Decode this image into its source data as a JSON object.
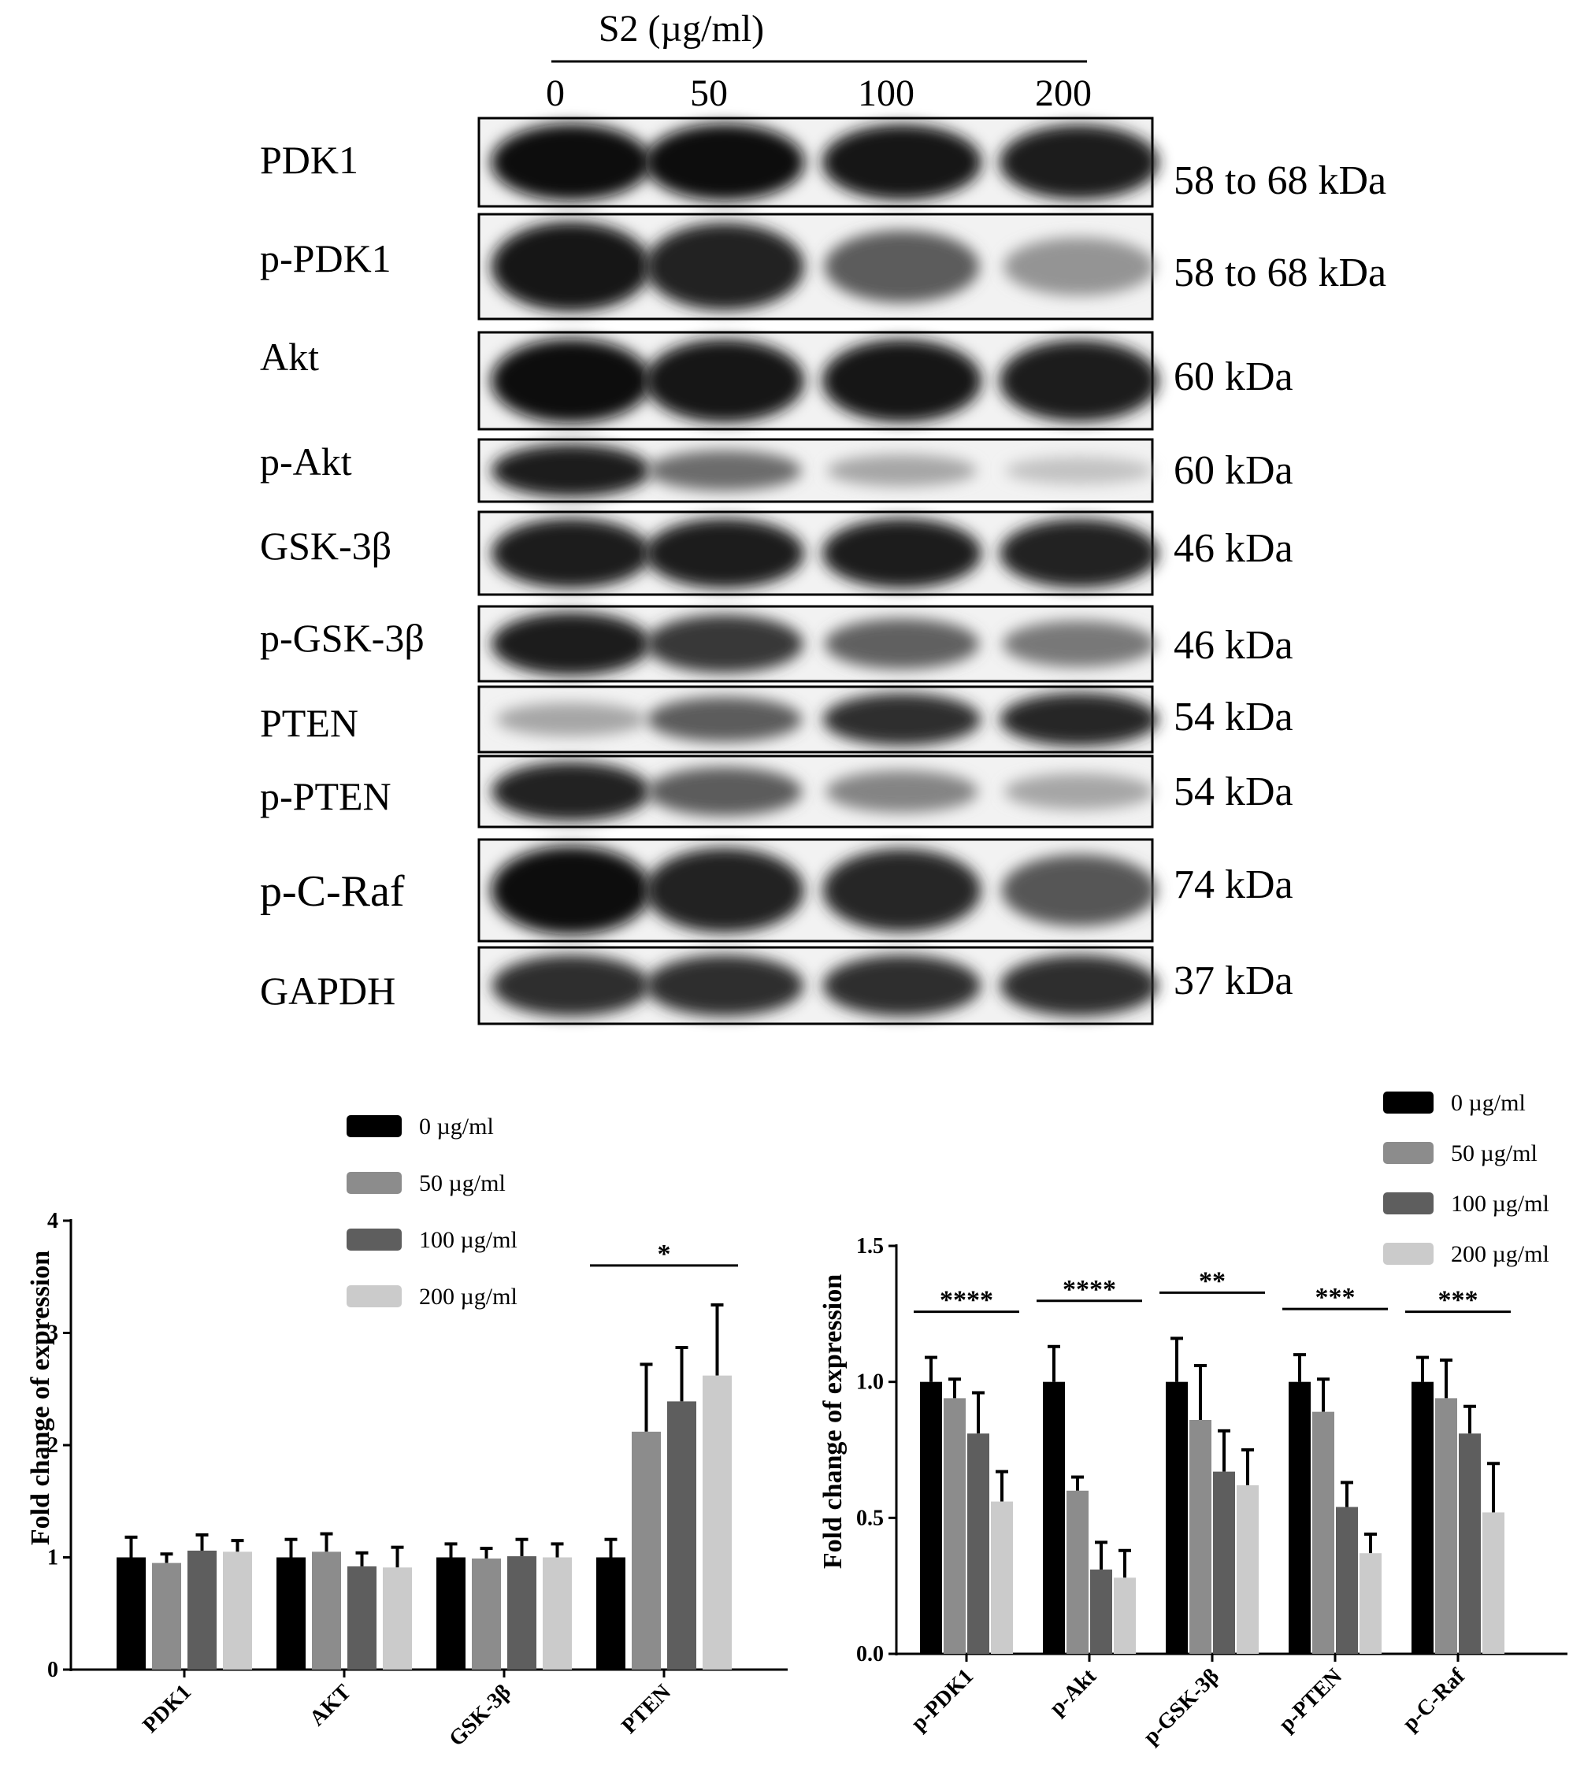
{
  "blot": {
    "treatment_label": "S2 (µg/ml)",
    "doses": [
      "0",
      "50",
      "100",
      "200"
    ],
    "rows": [
      {
        "protein": "PDK1",
        "size": "58 to 68 kDa",
        "intensities": [
          0.95,
          0.95,
          0.92,
          0.9
        ]
      },
      {
        "protein": "p-PDK1",
        "size": "58 to 68 kDa",
        "intensities": [
          0.92,
          0.88,
          0.62,
          0.38
        ]
      },
      {
        "protein": "Akt",
        "size": "60 kDa",
        "intensities": [
          0.95,
          0.93,
          0.92,
          0.9
        ]
      },
      {
        "protein": "p-Akt",
        "size": "60 kDa",
        "intensities": [
          0.9,
          0.55,
          0.3,
          0.18
        ]
      },
      {
        "protein": "GSK-3β",
        "size": "46 kDa",
        "intensities": [
          0.9,
          0.9,
          0.9,
          0.88
        ]
      },
      {
        "protein": "p-GSK-3β",
        "size": "46 kDa",
        "intensities": [
          0.9,
          0.78,
          0.6,
          0.5
        ]
      },
      {
        "protein": "PTEN",
        "size": "54 kDa",
        "intensities": [
          0.3,
          0.62,
          0.82,
          0.85
        ]
      },
      {
        "protein": "p-PTEN",
        "size": "54 kDa",
        "intensities": [
          0.88,
          0.62,
          0.45,
          0.3
        ]
      },
      {
        "protein": "p-C-Raf",
        "size": "74 kDa",
        "intensities": [
          0.95,
          0.88,
          0.85,
          0.65
        ]
      },
      {
        "protein": "GAPDH",
        "size": "37 kDa",
        "intensities": [
          0.82,
          0.82,
          0.82,
          0.82
        ]
      }
    ]
  },
  "chart_data": [
    {
      "type": "bar",
      "categories": [
        "PDK1",
        "AKT",
        "GSK-3β",
        "PTEN"
      ],
      "series": [
        {
          "name": "0 µg/ml",
          "color": "#000000",
          "values": [
            1.0,
            1.0,
            1.0,
            1.0
          ],
          "errors": [
            0.18,
            0.16,
            0.12,
            0.16
          ]
        },
        {
          "name": "50 µg/ml",
          "color": "#8c8c8c",
          "values": [
            0.95,
            1.05,
            0.99,
            2.12
          ],
          "errors": [
            0.08,
            0.16,
            0.09,
            0.6
          ]
        },
        {
          "name": "100 µg/ml",
          "color": "#5e5e5e",
          "values": [
            1.06,
            0.92,
            1.01,
            2.39
          ],
          "errors": [
            0.14,
            0.12,
            0.15,
            0.48
          ]
        },
        {
          "name": "200 µg/ml",
          "color": "#cbcbcb",
          "values": [
            1.05,
            0.91,
            1.0,
            2.62
          ],
          "errors": [
            0.1,
            0.18,
            0.12,
            0.63
          ]
        }
      ],
      "xlabel": "",
      "ylabel": "Fold change of expression",
      "ylim": [
        0,
        4
      ],
      "yticks": [
        "0",
        "1",
        "2",
        "3",
        "4"
      ],
      "significance": [
        {
          "category_index": 3,
          "label": "*"
        }
      ],
      "legend_position": "top"
    },
    {
      "type": "bar",
      "categories": [
        "p-PDK1",
        "p-Akt",
        "p-GSK-3β",
        "p-PTEN",
        "p-C-Raf"
      ],
      "series": [
        {
          "name": "0 µg/ml",
          "color": "#000000",
          "values": [
            1.0,
            1.0,
            1.0,
            1.0,
            1.0
          ],
          "errors": [
            0.09,
            0.13,
            0.16,
            0.1,
            0.09
          ]
        },
        {
          "name": "50 µg/ml",
          "color": "#8c8c8c",
          "values": [
            0.94,
            0.6,
            0.86,
            0.89,
            0.94
          ],
          "errors": [
            0.07,
            0.05,
            0.2,
            0.12,
            0.14
          ]
        },
        {
          "name": "100 µg/ml",
          "color": "#5e5e5e",
          "values": [
            0.81,
            0.31,
            0.67,
            0.54,
            0.81
          ],
          "errors": [
            0.15,
            0.1,
            0.15,
            0.09,
            0.1
          ]
        },
        {
          "name": "200 µg/ml",
          "color": "#cbcbcb",
          "values": [
            0.56,
            0.28,
            0.62,
            0.37,
            0.52
          ],
          "errors": [
            0.11,
            0.1,
            0.13,
            0.07,
            0.18
          ]
        }
      ],
      "xlabel": "",
      "ylabel": "Fold change of expression",
      "ylim": [
        0,
        1.5
      ],
      "yticks": [
        "0.0",
        "0.5",
        "1.0",
        "1.5"
      ],
      "significance": [
        {
          "category_index": 0,
          "label": "****"
        },
        {
          "category_index": 1,
          "label": "****"
        },
        {
          "category_index": 2,
          "label": "**"
        },
        {
          "category_index": 3,
          "label": "***"
        },
        {
          "category_index": 4,
          "label": "***"
        }
      ],
      "legend_position": "top-right"
    }
  ]
}
